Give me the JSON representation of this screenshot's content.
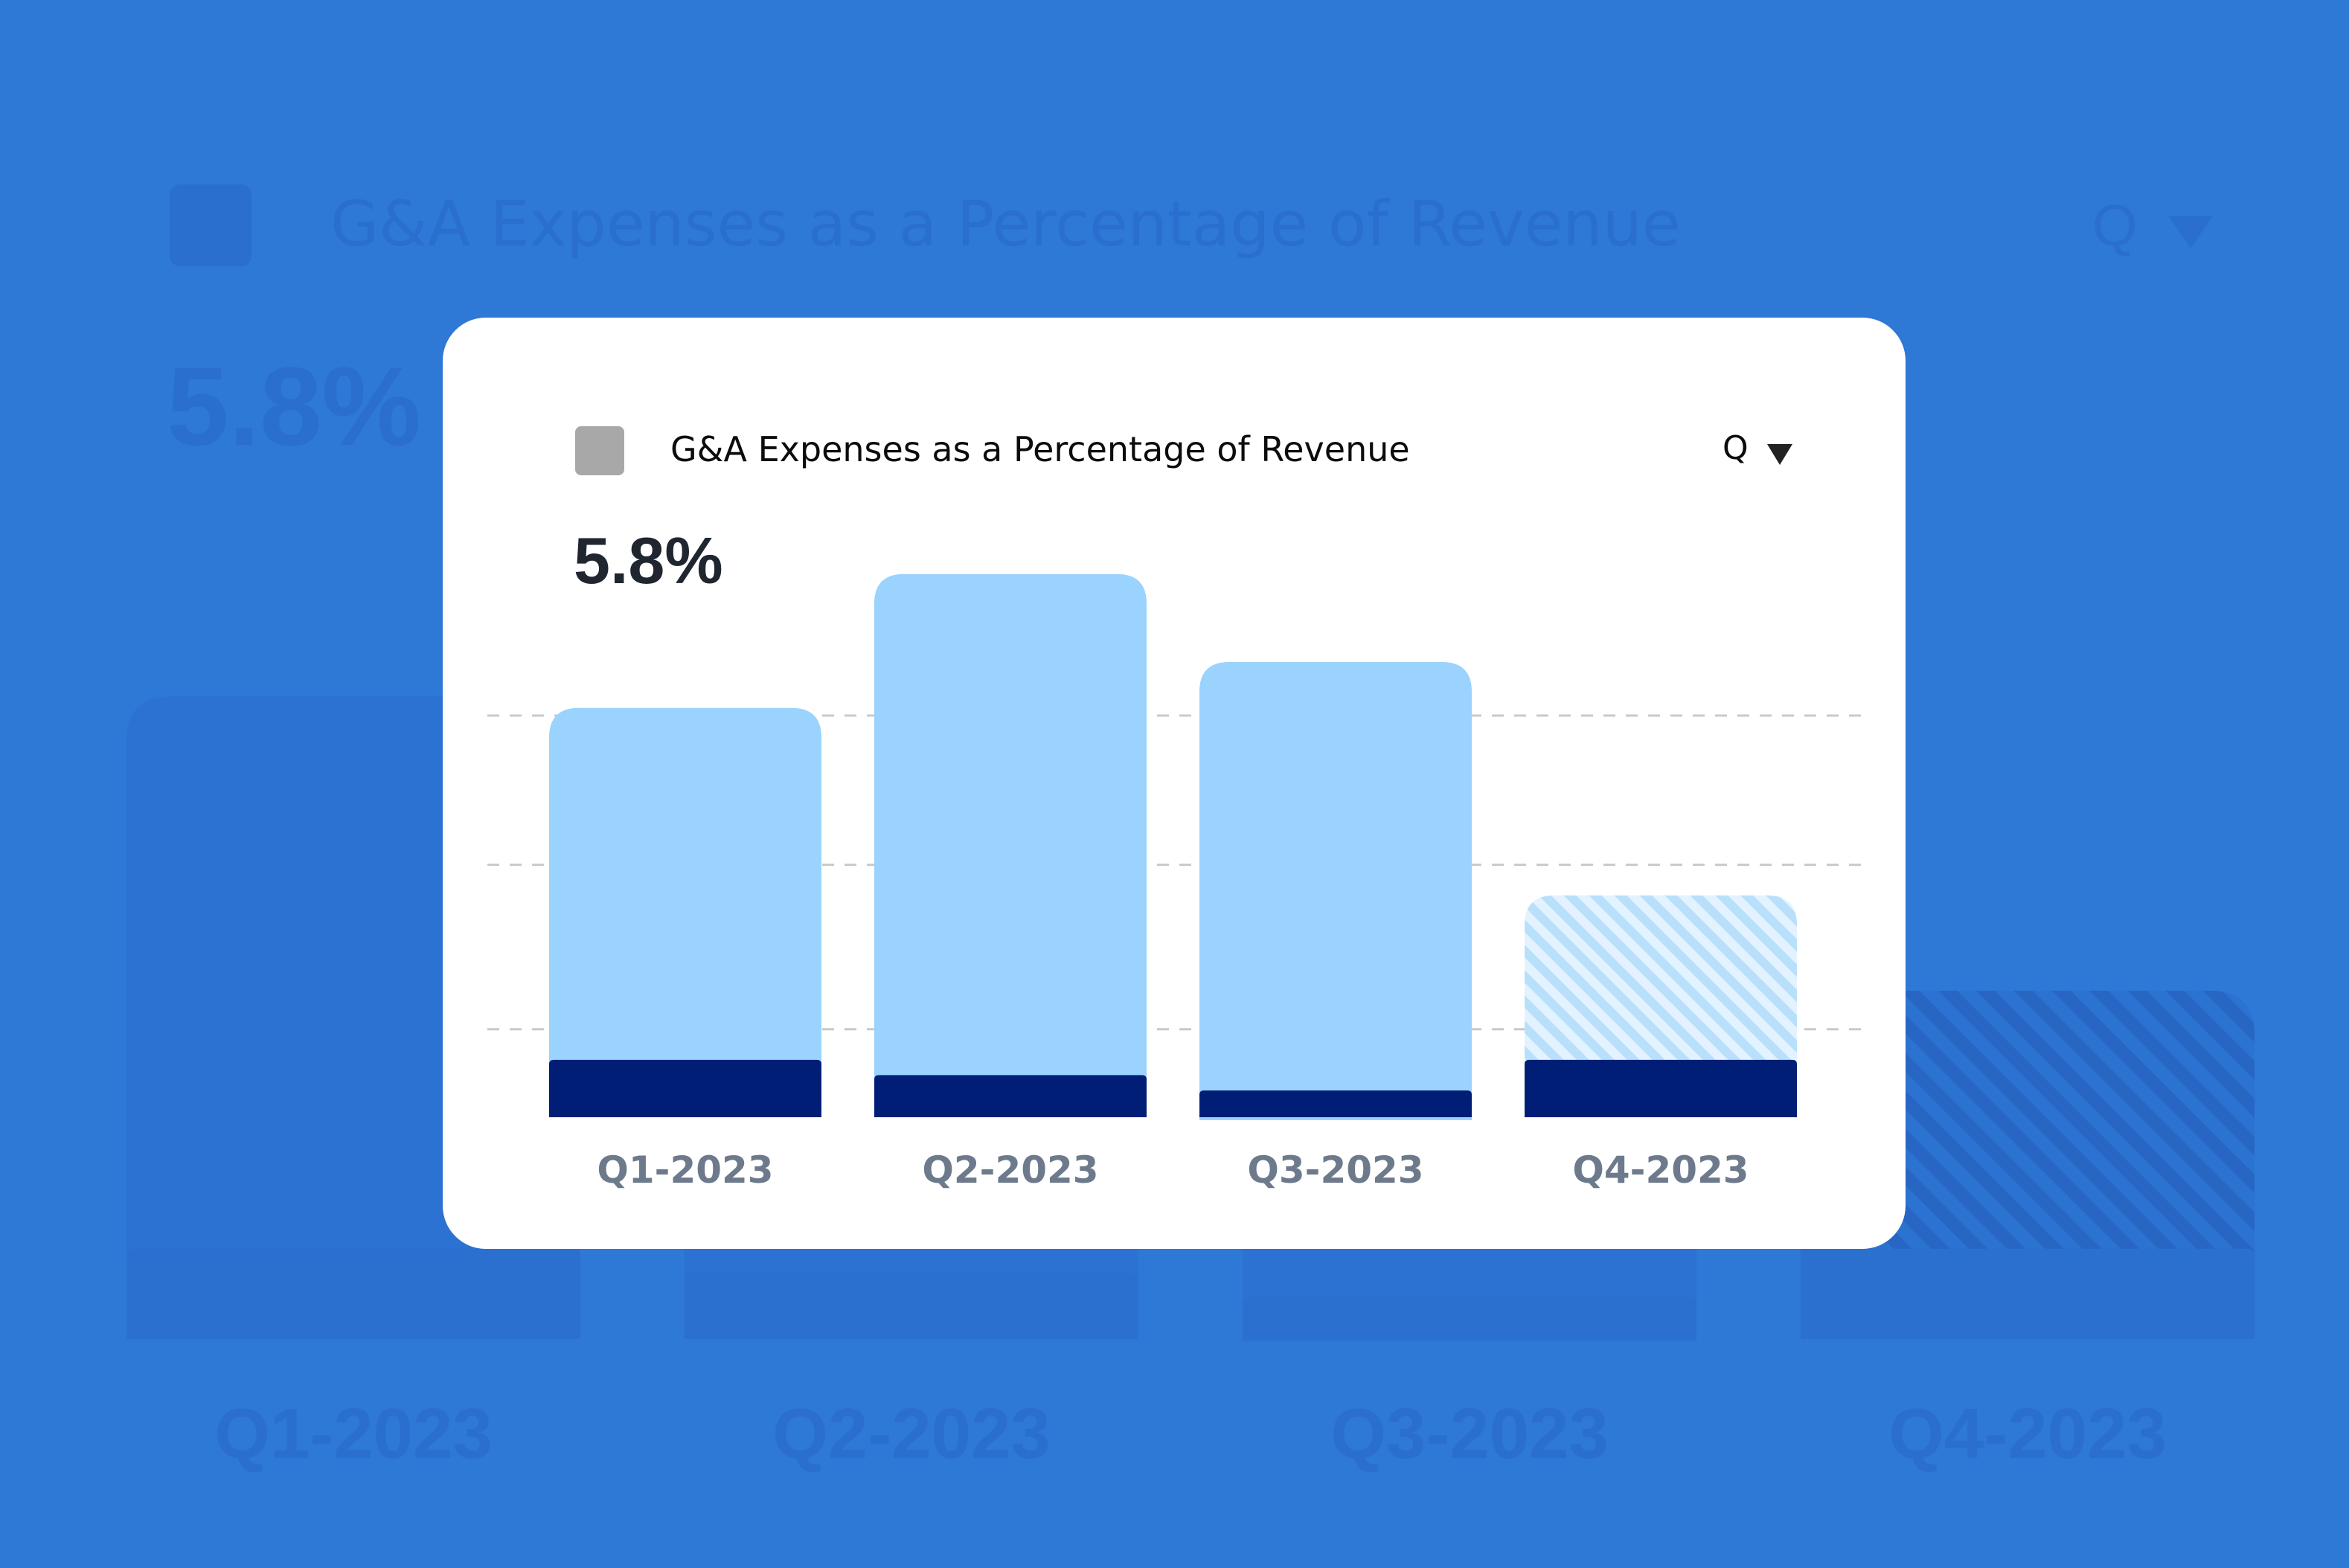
{
  "chart_data": {
    "type": "bar",
    "title": "G&A Expenses as a Percentage of Revenue",
    "kpi": "5.8%",
    "period": "Q",
    "categories": [
      "Q1-2023",
      "Q2-2023",
      "Q3-2023",
      "Q4-2023"
    ],
    "series": [
      {
        "values": [
          0.75,
          0.55,
          0.35,
          0.75
        ]
      },
      {
        "values": [
          4.6,
          6.55,
          5.6,
          2.15
        ]
      }
    ],
    "series_styles": [
      {
        "color": "#001e76"
      },
      {
        "color": "#9ad3fd",
        "projected_color": "#b9e0fb"
      }
    ],
    "projected_category": "Q4-2023",
    "ylim": [
      0,
      7
    ],
    "gridlines": [
      1.15,
      3.3,
      5.25
    ],
    "grid": true
  },
  "colors": {
    "background": "#2e78d6",
    "card": "#ffffff",
    "legend_swatch": "#a8a8a8",
    "axis_label": "#6d7a8c"
  },
  "icons": {
    "period_dropdown": "caret-down-icon"
  }
}
